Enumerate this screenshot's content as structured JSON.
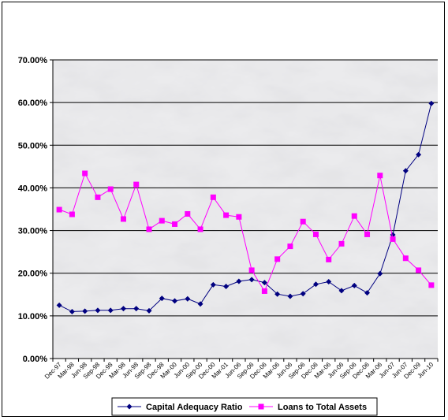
{
  "chart_data": {
    "type": "line",
    "title": "",
    "xlabel": "",
    "ylabel": "",
    "ylim": [
      0,
      0.7
    ],
    "y_ticks": [
      "0.00%",
      "10.00%",
      "20.00%",
      "30.00%",
      "40.00%",
      "50.00%",
      "60.00%",
      "70.00%"
    ],
    "grid": "horizontal",
    "legend_position": "bottom",
    "plot_background": "gray marble texture",
    "categories": [
      "Dec-97",
      "Mar-98",
      "Jun-98",
      "Sep-98",
      "Dec-98",
      "Mar-98",
      "Jun-98",
      "Sep-98",
      "Dec-98",
      "Mar-00",
      "Jun-00",
      "Sep-00",
      "Dec-00",
      "Mar-01",
      "Jun-06",
      "Sep-06",
      "Dec-06",
      "Mar-06",
      "Jun-06",
      "Sep-06",
      "Dec-06",
      "Mar-06",
      "Jun-06",
      "Sep-06",
      "Dec-06",
      "Mar-06",
      "Jun-07",
      "Jun-07",
      "Dec-09",
      "Jun-10"
    ],
    "series": [
      {
        "name": "Capital Adequacy Ratio",
        "color": "#000080",
        "marker": "diamond",
        "values": [
          0.125,
          0.11,
          0.111,
          0.113,
          0.113,
          0.117,
          0.117,
          0.112,
          0.141,
          0.135,
          0.14,
          0.128,
          0.173,
          0.169,
          0.181,
          0.185,
          0.178,
          0.151,
          0.146,
          0.152,
          0.174,
          0.18,
          0.159,
          0.171,
          0.154,
          0.199,
          0.29,
          0.44,
          0.478,
          0.598
        ]
      },
      {
        "name": "Loans to Total Assets",
        "color": "#FF00FF",
        "marker": "square",
        "values": [
          0.349,
          0.338,
          0.434,
          0.378,
          0.397,
          0.327,
          0.408,
          0.303,
          0.323,
          0.315,
          0.339,
          0.303,
          0.378,
          0.336,
          0.332,
          0.207,
          0.158,
          0.233,
          0.263,
          0.321,
          0.291,
          0.232,
          0.269,
          0.334,
          0.291,
          0.429,
          0.28,
          0.235,
          0.207,
          0.172
        ]
      }
    ]
  }
}
